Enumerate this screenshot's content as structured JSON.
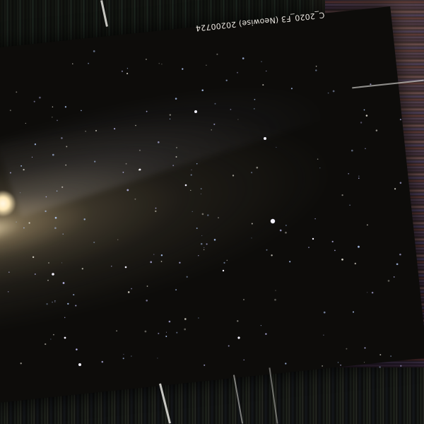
{
  "image": {
    "subject": "comet",
    "caption": "C_2020_F3 (Neowise) 20200724"
  },
  "colors": {
    "sky": "#0d0c0a",
    "comet_core": "#fff8e6",
    "dust_tail": "#c8af82",
    "ion_tail": "#aaaabe",
    "right_streaks": "#4a3a58"
  }
}
